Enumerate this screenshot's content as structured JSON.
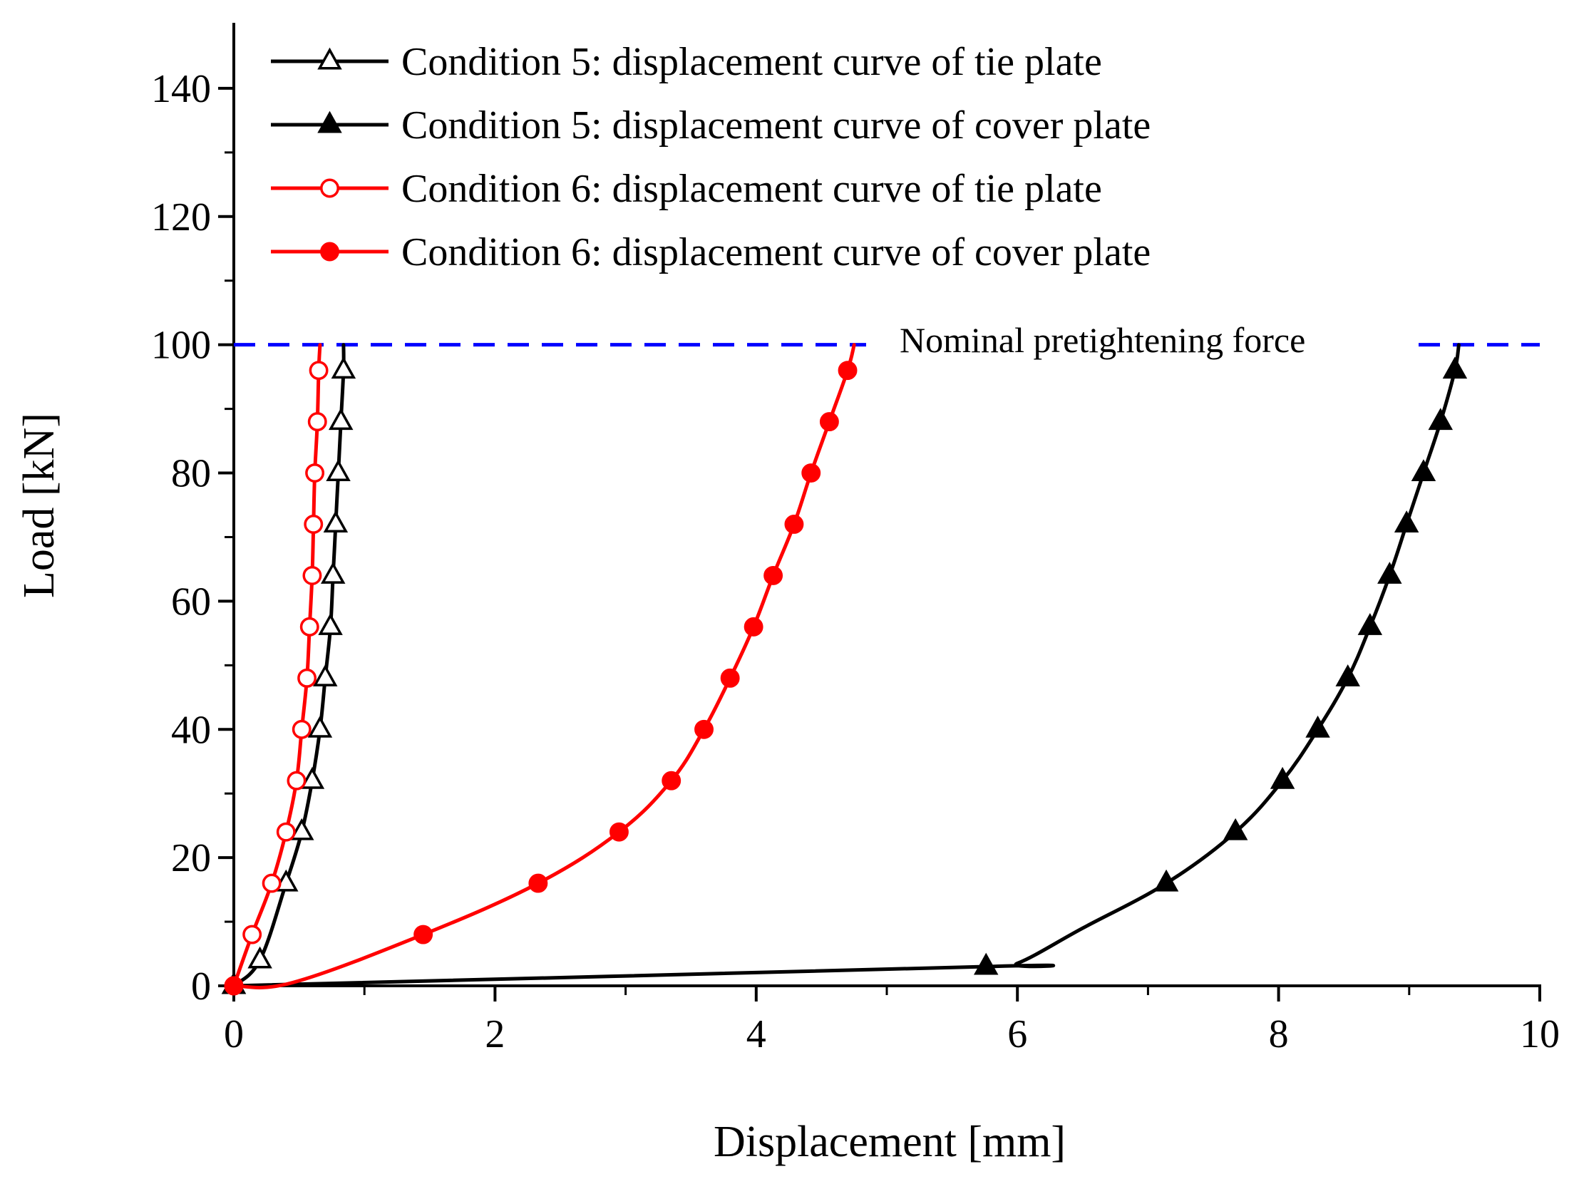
{
  "chart_data": {
    "type": "line",
    "title": "",
    "xlabel": "Displacement [mm]",
    "ylabel": "Load [kN]",
    "xlim": [
      0,
      10
    ],
    "ylim": [
      0,
      150
    ],
    "xticks": [
      0,
      2,
      4,
      6,
      8,
      10
    ],
    "xtick_labels": [
      "0",
      "2",
      "4",
      "6",
      "8",
      "10"
    ],
    "yticks": [
      0,
      20,
      40,
      60,
      80,
      100,
      120,
      140
    ],
    "ytick_labels": [
      "0",
      "20",
      "40",
      "60",
      "80",
      "100",
      "120",
      "140"
    ],
    "grid": false,
    "legend_position": "top-left",
    "reference_line": {
      "y": 100,
      "label": "Nominal pretightening force",
      "color": "#0000ff",
      "style": "dashed"
    },
    "series": [
      {
        "name": "Condition 5: displacement curve of tie plate",
        "color": "#000000",
        "marker": "triangle-open",
        "x": [
          0.0,
          0.2,
          0.4,
          0.52,
          0.6,
          0.66,
          0.7,
          0.74,
          0.76,
          0.78,
          0.8,
          0.82,
          0.84,
          0.84
        ],
        "y": [
          0,
          4,
          16,
          24,
          32,
          40,
          48,
          56,
          64,
          72,
          80,
          88,
          96,
          100
        ]
      },
      {
        "name": "Condition 5: displacement curve of cover plate",
        "color": "#000000",
        "marker": "triangle-filled",
        "x": [
          0.0,
          5.76,
          6.0,
          6.5,
          7.14,
          7.67,
          8.03,
          8.3,
          8.53,
          8.7,
          8.85,
          8.98,
          9.11,
          9.24,
          9.35,
          9.38
        ],
        "y": [
          0,
          3,
          3.5,
          9,
          16,
          24,
          32,
          40,
          48,
          56,
          64,
          72,
          80,
          88,
          96,
          100
        ]
      },
      {
        "name": "Condition 6: displacement curve of tie plate",
        "color": "#ff0000",
        "marker": "circle-open",
        "x": [
          0.0,
          0.14,
          0.29,
          0.4,
          0.48,
          0.52,
          0.56,
          0.58,
          0.6,
          0.61,
          0.62,
          0.64,
          0.65,
          0.66
        ],
        "y": [
          0,
          8,
          16,
          24,
          32,
          40,
          48,
          56,
          64,
          72,
          80,
          88,
          96,
          100
        ]
      },
      {
        "name": "Condition 6: displacement curve of cover plate",
        "color": "#ff0000",
        "marker": "circle-filled",
        "x": [
          0.0,
          0.45,
          1.45,
          2.33,
          2.95,
          3.35,
          3.6,
          3.8,
          3.98,
          4.13,
          4.29,
          4.42,
          4.56,
          4.7,
          4.75
        ],
        "y": [
          0,
          0.5,
          8,
          16,
          24,
          32,
          40,
          48,
          56,
          64,
          72,
          80,
          88,
          96,
          100
        ]
      }
    ]
  }
}
